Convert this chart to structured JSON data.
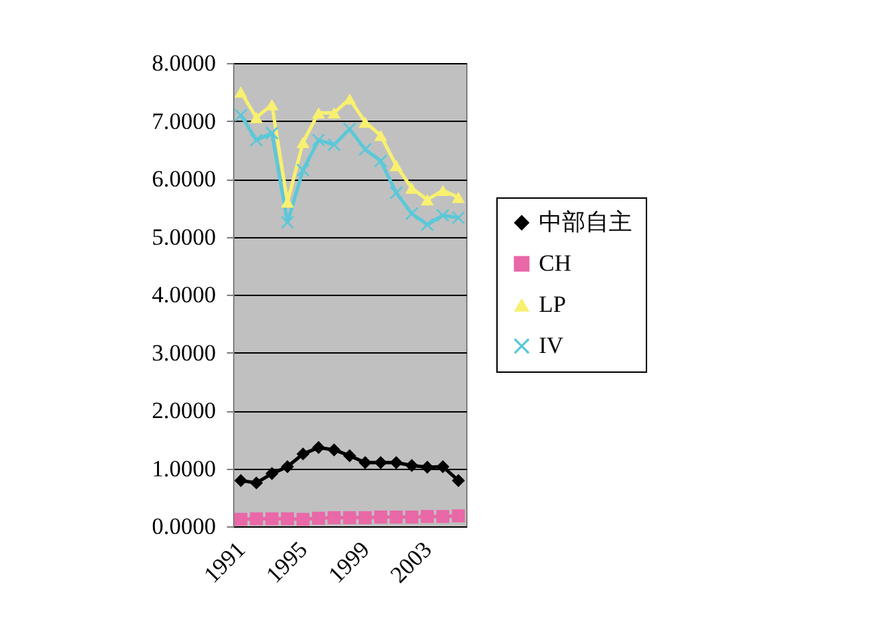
{
  "chart_data": {
    "type": "line",
    "categories": [
      "1991",
      null,
      null,
      null,
      "1995",
      null,
      null,
      null,
      "1999",
      null,
      null,
      null,
      "2003",
      null,
      null
    ],
    "series": [
      {
        "name": "中部自主",
        "color": "#000000",
        "marker": "diamond",
        "values": [
          0.79,
          0.75,
          0.91,
          1.03,
          1.25,
          1.36,
          1.32,
          1.22,
          1.1,
          1.1,
          1.1,
          1.05,
          1.02,
          1.03,
          0.79
        ]
      },
      {
        "name": "CH",
        "color": "#e868a8",
        "marker": "square",
        "values": [
          0.12,
          0.13,
          0.13,
          0.13,
          0.12,
          0.14,
          0.15,
          0.15,
          0.15,
          0.16,
          0.16,
          0.16,
          0.17,
          0.17,
          0.18
        ]
      },
      {
        "name": "LP",
        "color": "#f8f070",
        "marker": "triangle",
        "values": [
          7.5,
          7.06,
          7.28,
          5.6,
          6.63,
          7.14,
          7.14,
          7.38,
          6.98,
          6.75,
          6.23,
          5.84,
          5.64,
          5.8,
          5.68
        ]
      },
      {
        "name": "IV",
        "color": "#5bc8d8",
        "marker": "cross",
        "values": [
          7.1,
          6.67,
          6.79,
          5.25,
          6.15,
          6.67,
          6.59,
          6.86,
          6.51,
          6.31,
          5.76,
          5.4,
          5.21,
          5.37,
          5.33
        ]
      }
    ],
    "ylim": [
      0,
      8
    ],
    "yticks": [
      {
        "value": 0,
        "label": "0.0000"
      },
      {
        "value": 1,
        "label": "1.0000"
      },
      {
        "value": 2,
        "label": "2.0000"
      },
      {
        "value": 3,
        "label": "3.0000"
      },
      {
        "value": 4,
        "label": "4.0000"
      },
      {
        "value": 5,
        "label": "5.0000"
      },
      {
        "value": 6,
        "label": "6.0000"
      },
      {
        "value": 7,
        "label": "7.0000"
      },
      {
        "value": 8,
        "label": "8.0000"
      }
    ],
    "grid": "y",
    "legend": "right",
    "line_style": "solid"
  }
}
